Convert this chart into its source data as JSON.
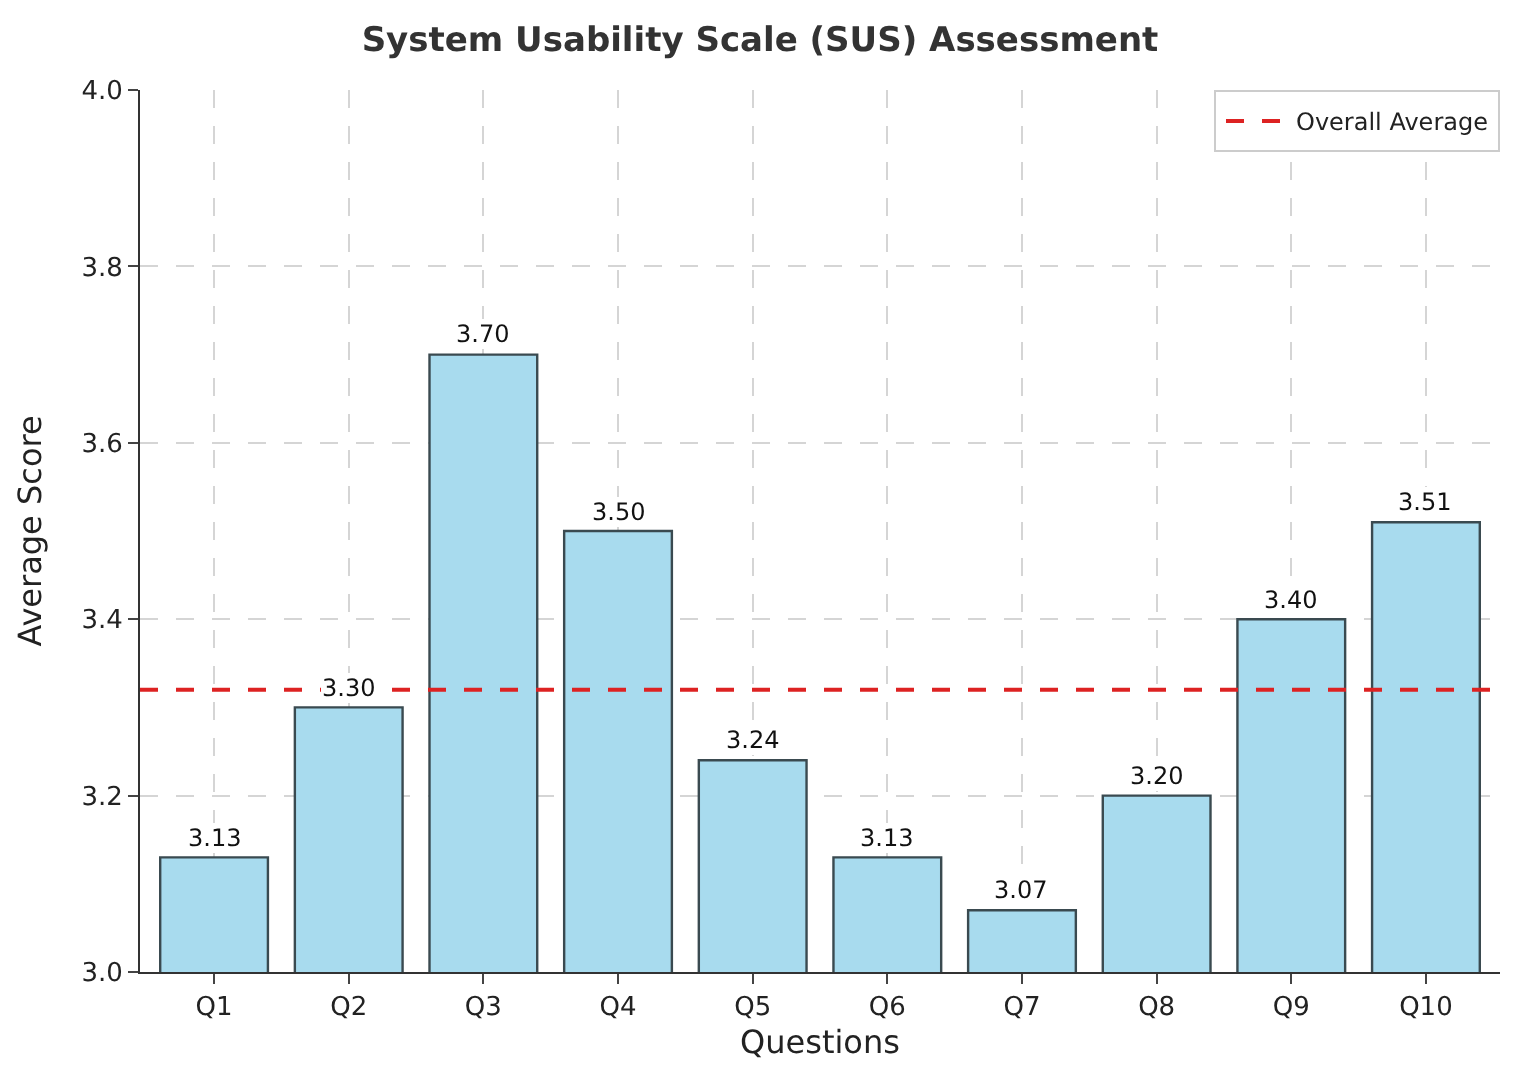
{
  "chart_data": {
    "type": "bar",
    "title": "System Usability Scale (SUS) Assessment",
    "xlabel": "Questions",
    "ylabel": "Average Score",
    "categories": [
      "Q1",
      "Q2",
      "Q3",
      "Q4",
      "Q5",
      "Q6",
      "Q7",
      "Q8",
      "Q9",
      "Q10"
    ],
    "values": [
      3.13,
      3.3,
      3.7,
      3.5,
      3.24,
      3.13,
      3.07,
      3.2,
      3.4,
      3.51
    ],
    "value_labels": [
      "3.13",
      "3.30",
      "3.70",
      "3.50",
      "3.24",
      "3.13",
      "3.07",
      "3.20",
      "3.40",
      "3.51"
    ],
    "color": "#a8dbee",
    "ylim": [
      3.0,
      4.0
    ],
    "yticks": [
      {
        "value": 3.0,
        "label": "3.0"
      },
      {
        "value": 3.2,
        "label": "3.2"
      },
      {
        "value": 3.4,
        "label": "3.4"
      },
      {
        "value": 3.6,
        "label": "3.6"
      },
      {
        "value": 3.8,
        "label": "3.8"
      },
      {
        "value": 4.0,
        "label": "4.0"
      }
    ],
    "ref_lines": [
      {
        "axis": "y",
        "value": 3.32,
        "label": "Overall Average",
        "color": "#dd2222",
        "line_style": "dashed"
      }
    ],
    "grid": true,
    "legend": "top right"
  }
}
